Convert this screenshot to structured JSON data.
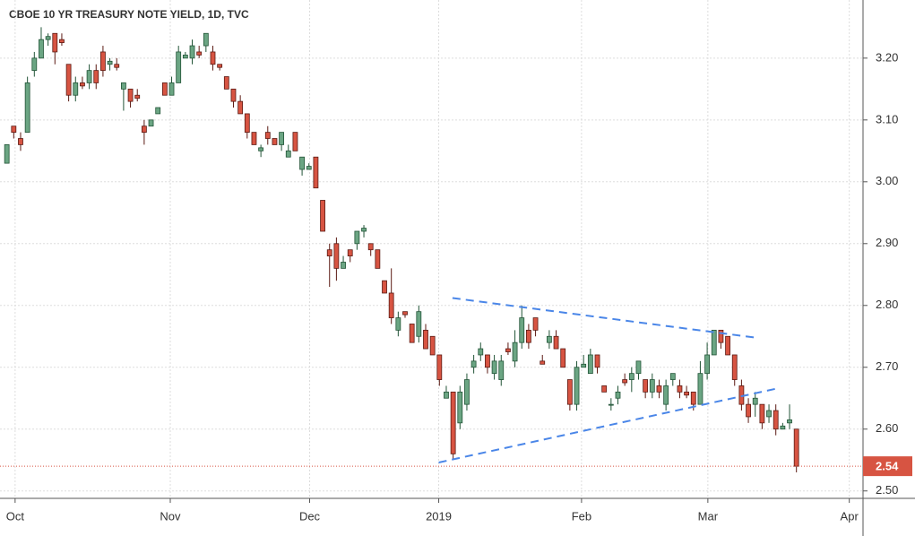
{
  "chart_data": {
    "type": "candlestick",
    "title": "CBOE 10 YR TREASURY NOTE YIELD, 1D, TVC",
    "series": {
      "open": [
        3.03,
        3.09,
        3.07,
        3.08,
        3.18,
        3.2,
        3.23,
        3.24,
        3.23,
        3.19,
        3.14,
        3.16,
        3.16,
        3.18,
        3.21,
        3.19,
        3.19,
        3.15,
        3.15,
        3.14,
        3.09,
        3.09,
        3.11,
        3.16,
        3.14,
        3.16,
        3.2,
        3.2,
        3.21,
        3.22,
        3.21,
        3.19,
        3.17,
        3.15,
        3.13,
        3.11,
        3.08,
        3.05,
        3.08,
        3.07,
        3.06,
        3.04,
        3.08,
        3.02,
        3.02,
        3.04,
        2.97,
        2.89,
        2.9,
        2.86,
        2.89,
        2.9,
        2.92,
        2.9,
        2.89,
        2.84,
        2.82,
        2.76,
        2.79,
        2.77,
        2.75,
        2.76,
        2.75,
        2.72,
        2.65,
        2.66,
        2.61,
        2.64,
        2.7,
        2.72,
        2.72,
        2.69,
        2.68,
        2.73,
        2.71,
        2.74,
        2.76,
        2.78,
        2.71,
        2.74,
        2.75,
        2.73,
        2.68,
        2.64,
        2.7,
        2.69,
        2.72,
        2.67,
        2.64,
        2.65,
        2.68,
        2.68,
        2.69,
        2.68,
        2.66,
        2.67,
        2.64,
        2.68,
        2.67,
        2.66,
        2.66,
        2.64,
        2.69,
        2.72,
        2.76,
        2.75,
        2.72,
        2.67,
        2.64,
        2.64,
        2.64,
        2.62,
        2.63,
        2.6,
        2.61,
        2.6
      ],
      "high": [
        3.06,
        3.09,
        3.08,
        3.17,
        3.21,
        3.25,
        3.24,
        3.24,
        3.24,
        3.19,
        3.17,
        3.17,
        3.19,
        3.19,
        3.22,
        3.2,
        3.2,
        3.16,
        3.15,
        3.15,
        3.1,
        3.1,
        3.12,
        3.16,
        3.17,
        3.22,
        3.21,
        3.23,
        3.22,
        3.24,
        3.22,
        3.19,
        3.17,
        3.15,
        3.14,
        3.11,
        3.08,
        3.06,
        3.09,
        3.07,
        3.08,
        3.06,
        3.08,
        3.04,
        3.03,
        3.04,
        2.97,
        2.9,
        2.91,
        2.88,
        2.89,
        2.92,
        2.93,
        2.9,
        2.89,
        2.84,
        2.86,
        2.79,
        2.79,
        2.77,
        2.8,
        2.77,
        2.75,
        2.72,
        2.67,
        2.66,
        2.67,
        2.69,
        2.72,
        2.74,
        2.72,
        2.72,
        2.72,
        2.74,
        2.76,
        2.8,
        2.77,
        2.78,
        2.72,
        2.76,
        2.76,
        2.73,
        2.68,
        2.71,
        2.72,
        2.73,
        2.72,
        2.67,
        2.65,
        2.67,
        2.69,
        2.7,
        2.71,
        2.68,
        2.69,
        2.68,
        2.68,
        2.69,
        2.68,
        2.67,
        2.66,
        2.71,
        2.74,
        2.76,
        2.76,
        2.75,
        2.72,
        2.68,
        2.65,
        2.66,
        2.64,
        2.64,
        2.64,
        2.61,
        2.64,
        2.6
      ],
      "low": [
        3.03,
        3.07,
        3.05,
        3.08,
        3.17,
        3.2,
        3.22,
        3.19,
        3.22,
        3.13,
        3.13,
        3.15,
        3.15,
        3.15,
        3.17,
        3.18,
        3.18,
        3.115,
        3.12,
        3.13,
        3.06,
        3.09,
        3.11,
        3.14,
        3.14,
        3.16,
        3.2,
        3.19,
        3.2,
        3.21,
        3.18,
        3.18,
        3.15,
        3.12,
        3.11,
        3.07,
        3.06,
        3.04,
        3.06,
        3.06,
        3.05,
        3.04,
        3.05,
        3.01,
        3.02,
        2.99,
        2.92,
        2.83,
        2.84,
        2.86,
        2.87,
        2.89,
        2.91,
        2.88,
        2.86,
        2.82,
        2.77,
        2.75,
        2.78,
        2.74,
        2.74,
        2.73,
        2.72,
        2.67,
        2.65,
        2.55,
        2.6,
        2.63,
        2.69,
        2.71,
        2.69,
        2.68,
        2.67,
        2.72,
        2.7,
        2.73,
        2.73,
        2.75,
        2.71,
        2.73,
        2.73,
        2.7,
        2.63,
        2.63,
        2.7,
        2.69,
        2.69,
        2.66,
        2.63,
        2.64,
        2.67,
        2.66,
        2.68,
        2.65,
        2.65,
        2.65,
        2.63,
        2.67,
        2.65,
        2.65,
        2.63,
        2.64,
        2.68,
        2.72,
        2.73,
        2.72,
        2.67,
        2.63,
        2.61,
        2.62,
        2.6,
        2.61,
        2.59,
        2.6,
        2.6,
        2.53
      ],
      "close": [
        3.06,
        3.08,
        3.06,
        3.16,
        3.2,
        3.23,
        3.235,
        3.21,
        3.225,
        3.14,
        3.16,
        3.155,
        3.18,
        3.16,
        3.18,
        3.195,
        3.185,
        3.16,
        3.13,
        3.135,
        3.08,
        3.1,
        3.12,
        3.14,
        3.16,
        3.21,
        3.205,
        3.22,
        3.205,
        3.24,
        3.19,
        3.185,
        3.15,
        3.13,
        3.11,
        3.08,
        3.06,
        3.055,
        3.07,
        3.06,
        3.08,
        3.05,
        3.05,
        3.04,
        3.025,
        2.99,
        2.92,
        2.88,
        2.86,
        2.87,
        2.88,
        2.92,
        2.925,
        2.89,
        2.86,
        2.82,
        2.78,
        2.78,
        2.785,
        2.74,
        2.79,
        2.73,
        2.72,
        2.68,
        2.66,
        2.56,
        2.66,
        2.68,
        2.71,
        2.73,
        2.7,
        2.71,
        2.71,
        2.725,
        2.74,
        2.78,
        2.74,
        2.76,
        2.705,
        2.75,
        2.73,
        2.7,
        2.64,
        2.7,
        2.705,
        2.72,
        2.7,
        2.66,
        2.64,
        2.66,
        2.675,
        2.69,
        2.71,
        2.66,
        2.68,
        2.66,
        2.67,
        2.69,
        2.66,
        2.655,
        2.64,
        2.69,
        2.72,
        2.76,
        2.74,
        2.72,
        2.68,
        2.64,
        2.62,
        2.65,
        2.61,
        2.63,
        2.6,
        2.605,
        2.615,
        2.54
      ]
    },
    "up_color": "#6ba583",
    "down_color": "#d75442",
    "xlim": [
      -1,
      124.7
    ],
    "xticks": [
      {
        "value": 1.2,
        "label": "Oct"
      },
      {
        "value": 23.8,
        "label": "Nov"
      },
      {
        "value": 44.1,
        "label": "Dec"
      },
      {
        "value": 62.9,
        "label": "2019"
      },
      {
        "value": 83.7,
        "label": "Feb"
      },
      {
        "value": 102.1,
        "label": "Mar"
      },
      {
        "value": 122.7,
        "label": "Apr"
      }
    ],
    "ylim": [
      2.488,
      3.294
    ],
    "yticks": [
      {
        "value": 2.5,
        "label": "2.50"
      },
      {
        "value": 2.6,
        "label": "2.60"
      },
      {
        "value": 2.7,
        "label": "2.70"
      },
      {
        "value": 2.8,
        "label": "2.80"
      },
      {
        "value": 2.9,
        "label": "2.90"
      },
      {
        "value": 3.0,
        "label": "3.00"
      },
      {
        "value": 3.1,
        "label": "3.10"
      },
      {
        "value": 3.2,
        "label": "3.20"
      }
    ],
    "grid": true,
    "last_price": 2.54,
    "last_price_color": "#d75442",
    "trendlines": [
      {
        "x": [
          64.9,
          109
        ],
        "y": [
          2.812,
          2.748
        ],
        "color": "#4a86e8"
      },
      {
        "x": [
          62.9,
          111.9
        ],
        "y": [
          2.546,
          2.665
        ],
        "color": "#4a86e8"
      }
    ]
  }
}
